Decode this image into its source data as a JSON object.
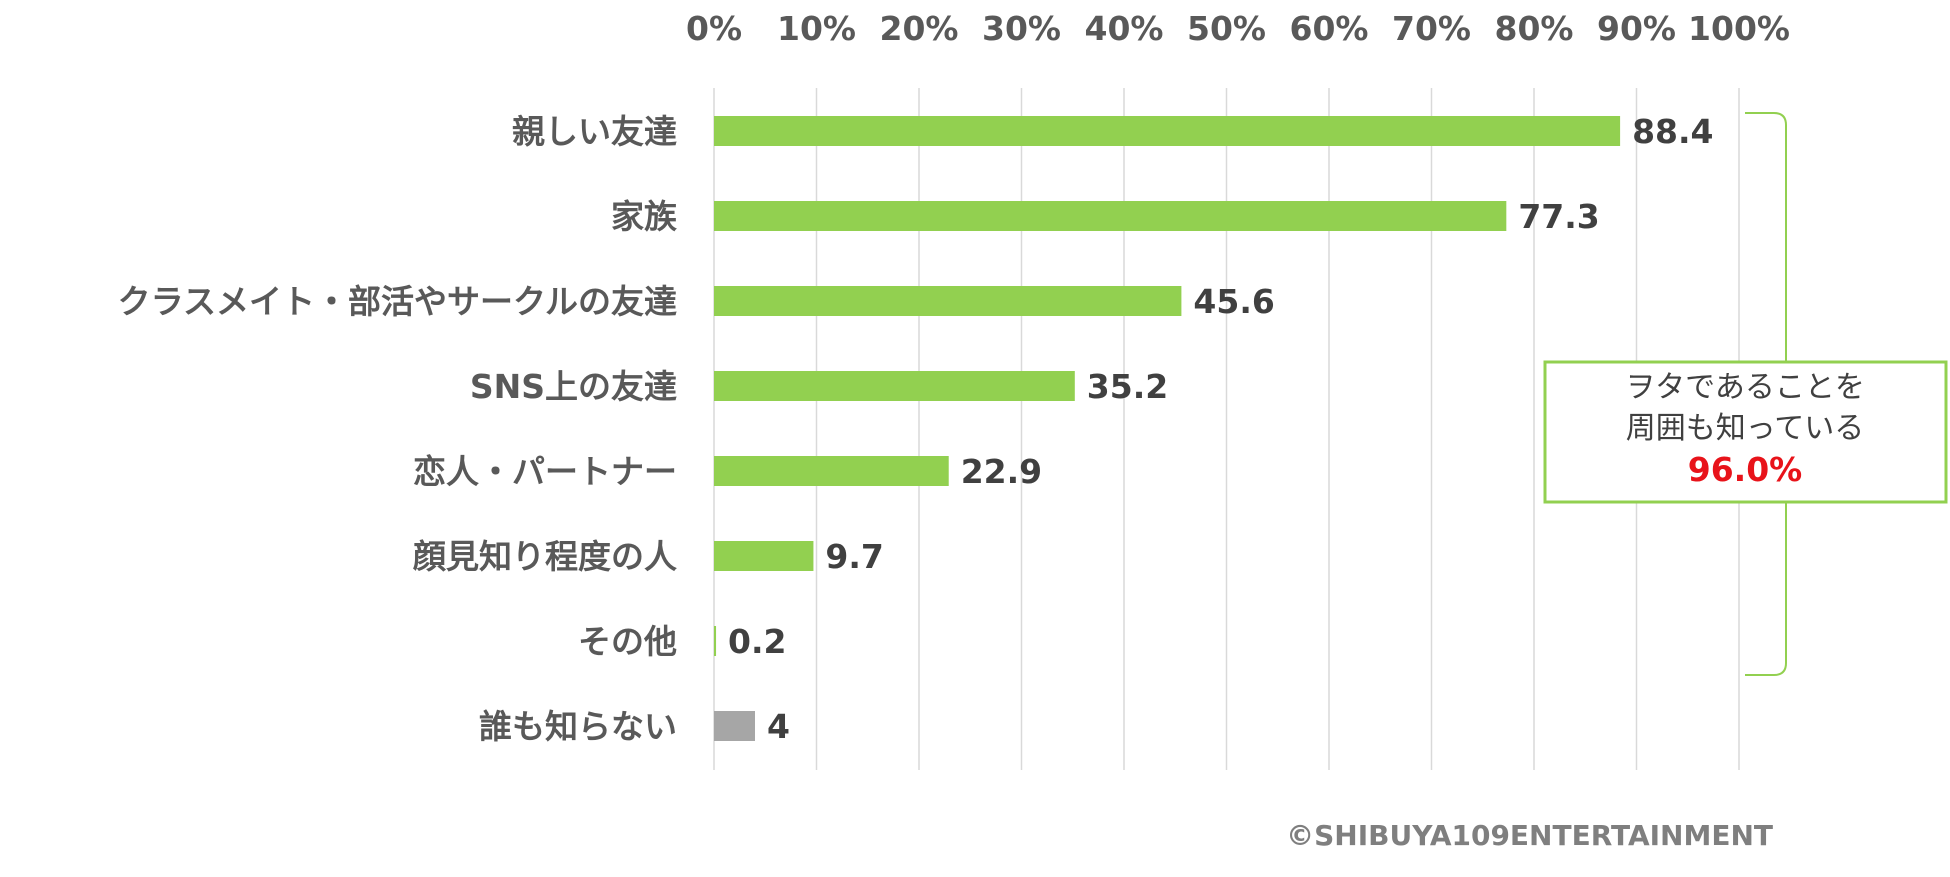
{
  "chart_data": {
    "type": "bar",
    "orientation": "horizontal",
    "categories": [
      "親しい友達",
      "家族",
      "クラスメイト・部活やサークルの友達",
      "SNS上の友達",
      "恋人・パートナー",
      "顔見知り程度の人",
      "その他",
      "誰も知らない"
    ],
    "values": [
      88.4,
      77.3,
      45.6,
      35.2,
      22.9,
      9.7,
      0.2,
      4
    ],
    "value_labels": [
      "88.4",
      "77.3",
      "45.6",
      "35.2",
      "22.9",
      "9.7",
      "0.2",
      "4"
    ],
    "bar_colors": [
      "#92d050",
      "#92d050",
      "#92d050",
      "#92d050",
      "#92d050",
      "#92d050",
      "#92d050",
      "#a6a6a6"
    ],
    "xlim": [
      0,
      100
    ],
    "x_ticks": [
      0,
      10,
      20,
      30,
      40,
      50,
      60,
      70,
      80,
      90,
      100
    ],
    "x_tick_labels": [
      "0%",
      "10%",
      "20%",
      "30%",
      "40%",
      "50%",
      "60%",
      "70%",
      "80%",
      "90%",
      "100%"
    ],
    "x_axis_position": "top",
    "grid": true,
    "legend": "none",
    "annotation": {
      "bracket_spans_categories": [
        "親しい友達",
        "その他"
      ],
      "lines": [
        "ヲタであることを",
        "周囲も知っている"
      ],
      "value_text": "96.0%",
      "border_color": "#92d050",
      "value_color": "#e8131a"
    }
  },
  "copyright": "©SHIBUYA109ENTERTAINMENT"
}
